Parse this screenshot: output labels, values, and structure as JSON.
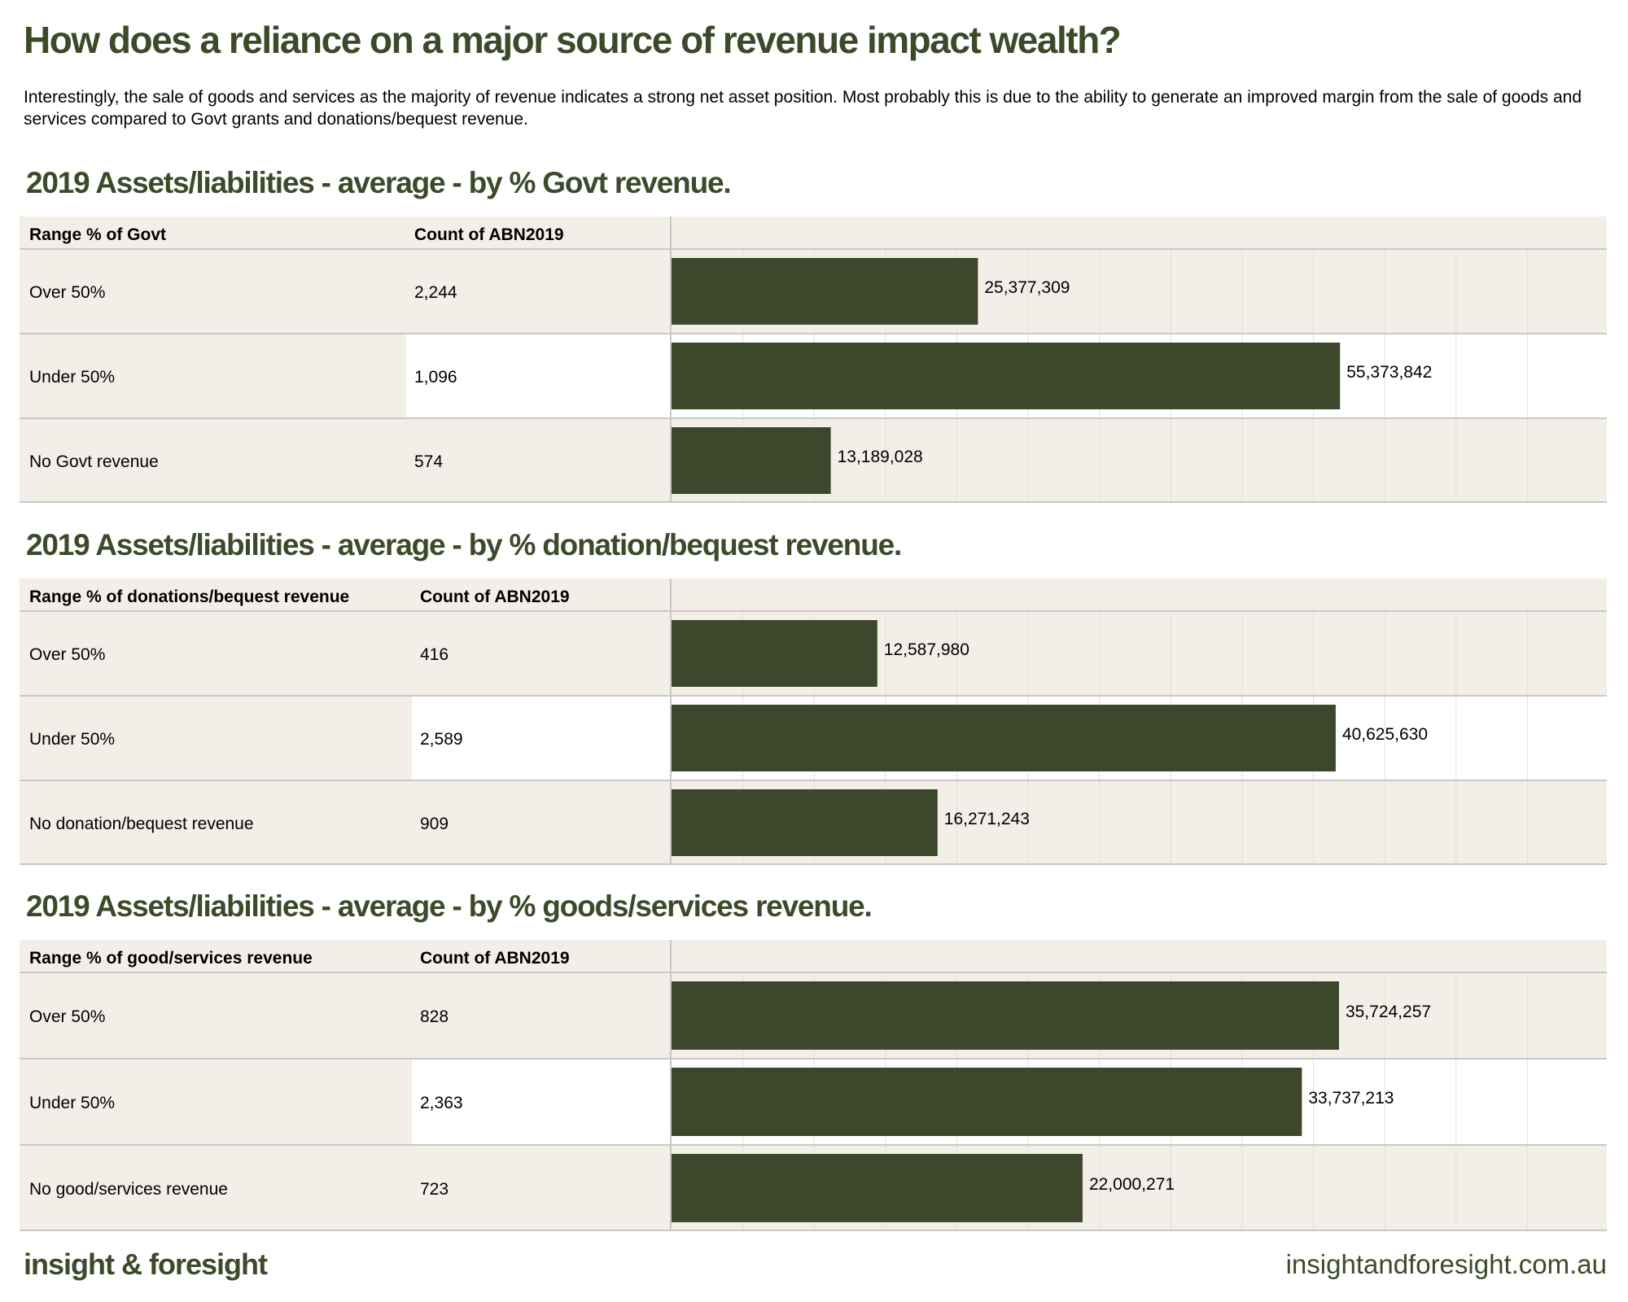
{
  "title": "How does a reliance on a major source of revenue impact wealth?",
  "intro": "Interestingly, the sale of goods and services as the majority of revenue indicates a strong net asset position. Most probably this is due to the ability to generate an improved margin from the sale of goods and services compared to Govt grants and donations/bequest revenue.",
  "colors": {
    "accent": "#3d4a2a",
    "bar": "#3d472b",
    "panel_bg": "#f3efe8",
    "border": "#c8c8c8"
  },
  "chart_data": [
    {
      "type": "bar",
      "title": "2019 Assets/liabilities - average - by % Govt revenue.",
      "col1_header": "Range % of Govt",
      "col2_header": "Count of ABN2019",
      "categories": [
        "Over 50%",
        "Under 50%",
        "No Govt revenue"
      ],
      "counts": [
        "2,244",
        "1,096",
        "574"
      ],
      "values": [
        25377309,
        55373842,
        13189028
      ],
      "value_labels": [
        "25,377,309",
        "55,373,842",
        "13,189,028"
      ],
      "xlim": [
        0,
        65000000
      ]
    },
    {
      "type": "bar",
      "title": "2019 Assets/liabilities - average - by % donation/bequest revenue.",
      "col1_header": "Range % of donations/bequest revenue",
      "col2_header": "Count of ABN2019",
      "categories": [
        "Over 50%",
        "Under 50%",
        "No donation/bequest revenue"
      ],
      "counts": [
        "416",
        "2,589",
        "909"
      ],
      "values": [
        12587980,
        40625630,
        16271243
      ],
      "value_labels": [
        "12,587,980",
        "40,625,630",
        "16,271,243"
      ],
      "xlim": [
        0,
        48000000
      ]
    },
    {
      "type": "bar",
      "title": "2019 Assets/liabilities - average - by % goods/services revenue.",
      "col1_header": "Range % of good/services revenue",
      "col2_header": "Count of ABN2019",
      "categories": [
        "Over 50%",
        "Under 50%",
        "No good/services revenue"
      ],
      "counts": [
        "828",
        "2,363",
        "723"
      ],
      "values": [
        35724257,
        33737213,
        22000271
      ],
      "value_labels": [
        "35,724,257",
        "33,737,213",
        "22,000,271"
      ],
      "xlim": [
        0,
        42000000
      ]
    }
  ],
  "footer": {
    "brand": "insight & foresight",
    "url": "insightandforesight.com.au"
  }
}
